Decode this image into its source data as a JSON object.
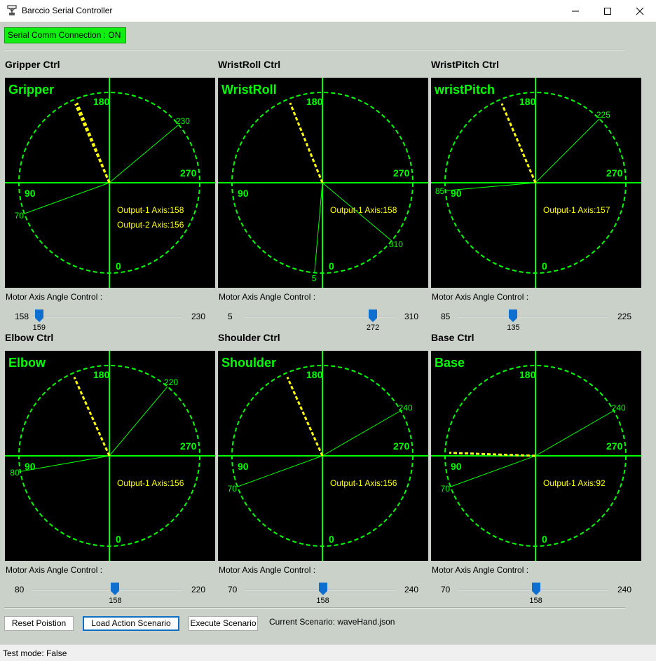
{
  "window": {
    "title": "Barccio Serial Controller",
    "minimize_label": "—",
    "maximize_label": "☐",
    "close_label": "✕"
  },
  "status_badge": "Serial Comm Connection : ON",
  "colors": {
    "dial_accent": "#00ff00",
    "dial_readout": "#ffff00",
    "dial_bg": "#000000",
    "badge": "#11ee11"
  },
  "panels": [
    {
      "title": "Gripper Ctrl",
      "dial_name": "Gripper",
      "readouts": [
        "Output-1 Axis:158",
        "Output-2 Axis:156"
      ],
      "cardinals": {
        "top": "180",
        "left": "90",
        "right": "270",
        "bottom": "0"
      },
      "lines": [
        {
          "angle": 230,
          "label": "230"
        },
        {
          "angle": 70,
          "label": "70"
        }
      ],
      "needles": [
        158,
        156
      ],
      "control_label": "Motor Axis Angle Control :",
      "slider": {
        "min": 158,
        "max": 230,
        "value": 159,
        "min_label": "158",
        "max_label": "230",
        "value_label": "159"
      }
    },
    {
      "title": "WristRoll Ctrl",
      "dial_name": "WristRoll",
      "readouts": [
        "Output-1 Axis:158"
      ],
      "cardinals": {
        "top": "180",
        "left": "90",
        "right": "270",
        "bottom": "0"
      },
      "lines": [
        {
          "angle": 310,
          "label": "310"
        },
        {
          "angle": 5,
          "label": "5"
        }
      ],
      "needles": [
        158
      ],
      "control_label": "Motor Axis Angle Control :",
      "slider": {
        "min": 5,
        "max": 310,
        "value": 272,
        "min_label": "5",
        "max_label": "310",
        "value_label": "272"
      }
    },
    {
      "title": "WristPitch Ctrl",
      "dial_name": "wristPitch",
      "readouts": [
        "Output-1 Axis:157"
      ],
      "cardinals": {
        "top": "180",
        "left": "90",
        "right": "270",
        "bottom": "0"
      },
      "lines": [
        {
          "angle": 225,
          "label": "225"
        },
        {
          "angle": 85,
          "label": "85"
        }
      ],
      "needles": [
        157
      ],
      "control_label": "Motor Axis Angle Control :",
      "slider": {
        "min": 85,
        "max": 225,
        "value": 135,
        "min_label": "85",
        "max_label": "225",
        "value_label": "135"
      }
    },
    {
      "title": "Elbow Ctrl",
      "dial_name": "Elbow",
      "readouts": [
        "Output-1 Axis:156"
      ],
      "cardinals": {
        "top": "180",
        "left": "90",
        "right": "270",
        "bottom": "0"
      },
      "lines": [
        {
          "angle": 220,
          "label": "220"
        },
        {
          "angle": 80,
          "label": "80"
        }
      ],
      "needles": [
        156
      ],
      "control_label": "Motor Axis Angle Control :",
      "slider": {
        "min": 80,
        "max": 220,
        "value": 158,
        "min_label": "80",
        "max_label": "220",
        "value_label": "158"
      }
    },
    {
      "title": "Shoulder Ctrl",
      "dial_name": "Shoulder",
      "readouts": [
        "Output-1 Axis:156"
      ],
      "cardinals": {
        "top": "180",
        "left": "90",
        "right": "270",
        "bottom": "0"
      },
      "lines": [
        {
          "angle": 240,
          "label": "240"
        },
        {
          "angle": 70,
          "label": "70"
        }
      ],
      "needles": [
        156
      ],
      "control_label": "Motor Axis Angle Control :",
      "slider": {
        "min": 70,
        "max": 240,
        "value": 158,
        "min_label": "70",
        "max_label": "240",
        "value_label": "158"
      }
    },
    {
      "title": "Base Ctrl",
      "dial_name": "Base",
      "readouts": [
        "Output-1 Axis:92"
      ],
      "cardinals": {
        "top": "180",
        "left": "90",
        "right": "270",
        "bottom": "0"
      },
      "lines": [
        {
          "angle": 240,
          "label": "240"
        },
        {
          "angle": 70,
          "label": "70"
        }
      ],
      "needles": [
        92
      ],
      "control_label": "Motor Axis Angle Control :",
      "slider": {
        "min": 70,
        "max": 240,
        "value": 158,
        "min_label": "70",
        "max_label": "240",
        "value_label": "158"
      }
    }
  ],
  "buttons": {
    "reset": "Reset Poistion",
    "load": "Load Action Scenario",
    "execute": "Execute Scenario"
  },
  "current_scenario": "Current Scenario: waveHand.json",
  "status_bar": "Test mode: False"
}
